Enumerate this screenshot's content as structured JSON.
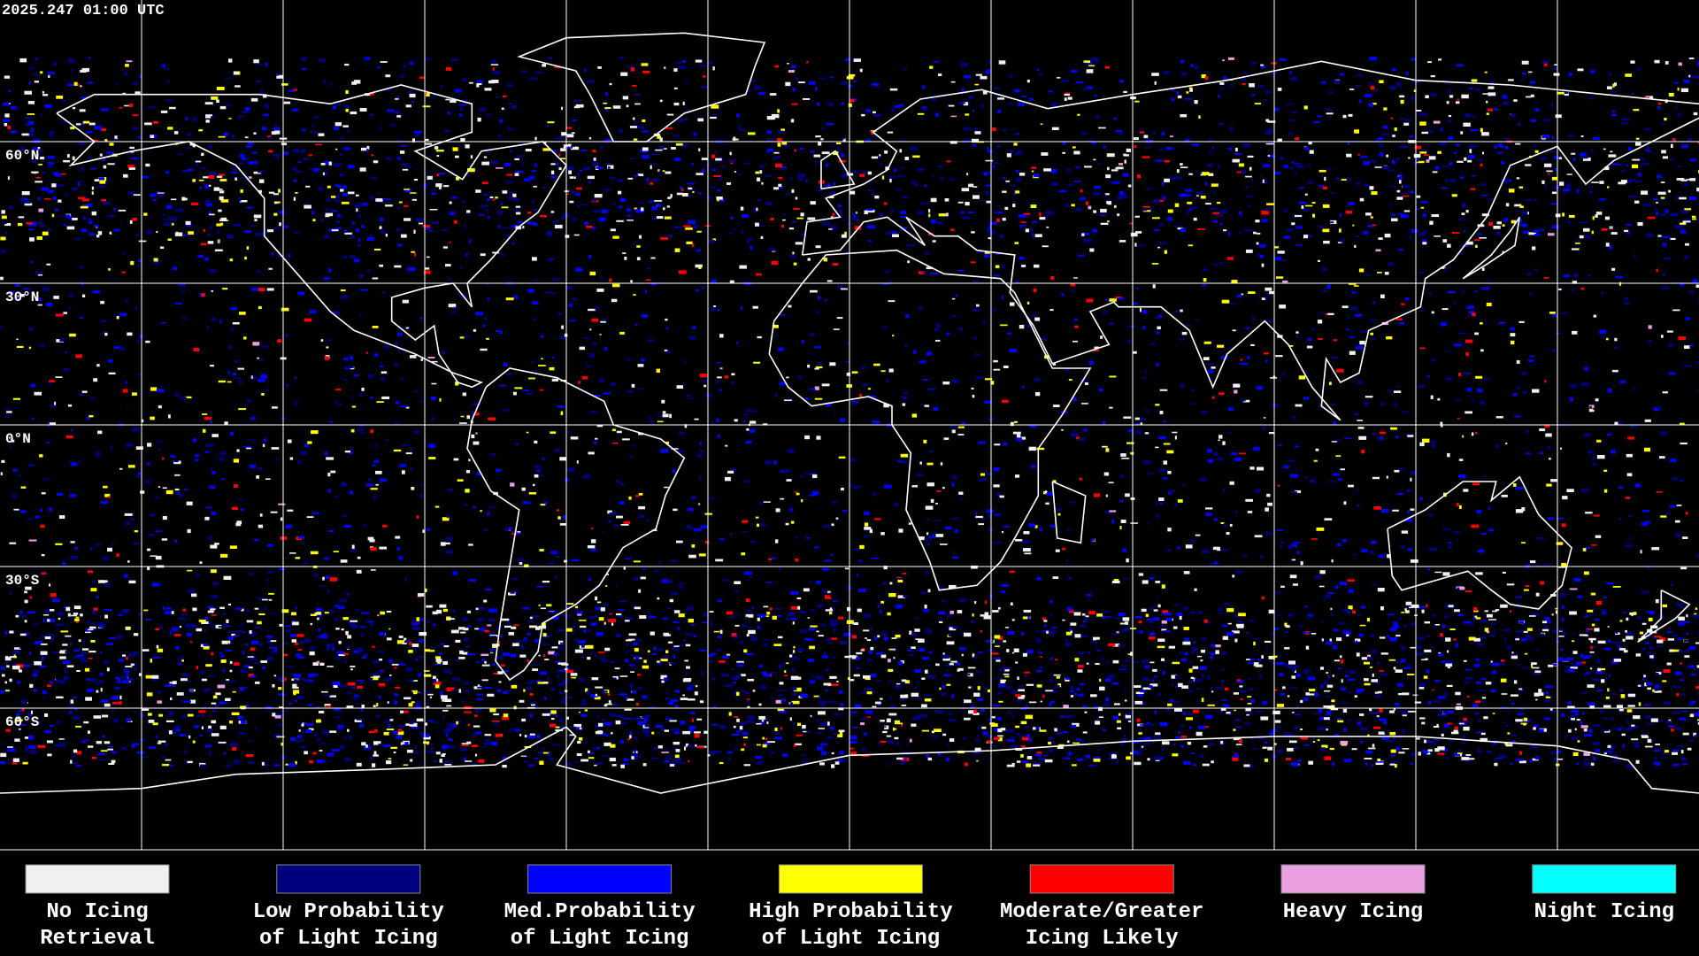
{
  "header": {
    "timestamp": "2025.247 01:00 UTC"
  },
  "map": {
    "latitude_labels": [
      "60°N",
      "30°N",
      "0°N",
      "30°S",
      "60°S"
    ]
  },
  "legend": {
    "items": [
      {
        "label": [
          "No Icing",
          "Retrieval"
        ],
        "color": "#f0f0f0"
      },
      {
        "label": [
          "Low Probability",
          "of Light Icing"
        ],
        "color": "#00007f"
      },
      {
        "label": [
          "Med.Probability",
          "of Light Icing"
        ],
        "color": "#0000ff"
      },
      {
        "label": [
          "High Probability",
          "of Light Icing"
        ],
        "color": "#ffff00"
      },
      {
        "label": [
          "Moderate/Greater",
          "Icing Likely"
        ],
        "color": "#ff0000"
      },
      {
        "label": [
          "Heavy Icing"
        ],
        "color": "#e8a0e0"
      },
      {
        "label": [
          "Night Icing"
        ],
        "color": "#00ffff"
      }
    ]
  }
}
